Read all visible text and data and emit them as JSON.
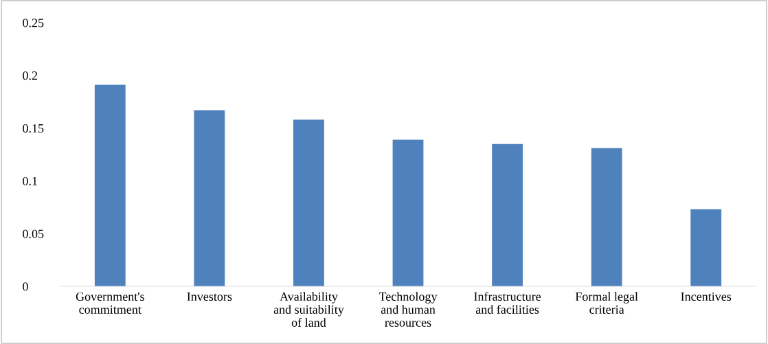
{
  "chart_data": {
    "type": "bar",
    "categories": [
      "Government's\ncommitment",
      "Investors",
      "Availability\nand suitability\nof land",
      "Technology\nand human\nresources",
      "Infrastructure\nand facilities",
      "Formal legal\ncriteria",
      "Incentives"
    ],
    "values": [
      0.191,
      0.167,
      0.158,
      0.139,
      0.135,
      0.131,
      0.073
    ],
    "color": "#4f81bd",
    "ylim": [
      0,
      0.25
    ],
    "yticks": [
      0,
      0.05,
      0.1,
      0.15,
      0.2,
      0.25
    ],
    "grid": false,
    "legend": false
  }
}
